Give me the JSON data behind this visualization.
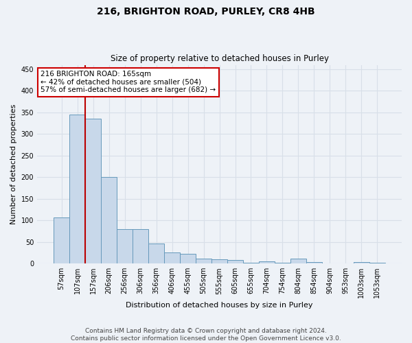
{
  "title": "216, BRIGHTON ROAD, PURLEY, CR8 4HB",
  "subtitle": "Size of property relative to detached houses in Purley",
  "xlabel": "Distribution of detached houses by size in Purley",
  "ylabel": "Number of detached properties",
  "footer_line1": "Contains HM Land Registry data © Crown copyright and database right 2024.",
  "footer_line2": "Contains public sector information licensed under the Open Government Licence v3.0.",
  "annotation_line1": "216 BRIGHTON ROAD: 165sqm",
  "annotation_line2": "← 42% of detached houses are smaller (504)",
  "annotation_line3": "57% of semi-detached houses are larger (682) →",
  "bar_color": "#c8d8ea",
  "bar_edge_color": "#6699bb",
  "vline_color": "#bb0000",
  "vline_x": 1.5,
  "categories": [
    "57sqm",
    "107sqm",
    "157sqm",
    "206sqm",
    "256sqm",
    "306sqm",
    "356sqm",
    "406sqm",
    "455sqm",
    "505sqm",
    "555sqm",
    "605sqm",
    "655sqm",
    "704sqm",
    "754sqm",
    "804sqm",
    "854sqm",
    "904sqm",
    "953sqm",
    "1003sqm",
    "1053sqm"
  ],
  "values": [
    107,
    345,
    335,
    200,
    80,
    80,
    47,
    25,
    22,
    12,
    10,
    8,
    2,
    5,
    2,
    12,
    3,
    1,
    0,
    3,
    2
  ],
  "ylim": [
    0,
    460
  ],
  "yticks": [
    0,
    50,
    100,
    150,
    200,
    250,
    300,
    350,
    400,
    450
  ],
  "background_color": "#eef2f7",
  "grid_color": "#d8dfe8",
  "annotation_box_facecolor": "#ffffff",
  "annotation_box_edgecolor": "#cc0000",
  "title_fontsize": 10,
  "subtitle_fontsize": 8.5,
  "ylabel_fontsize": 8,
  "xlabel_fontsize": 8,
  "tick_fontsize": 7,
  "footer_fontsize": 6.5
}
